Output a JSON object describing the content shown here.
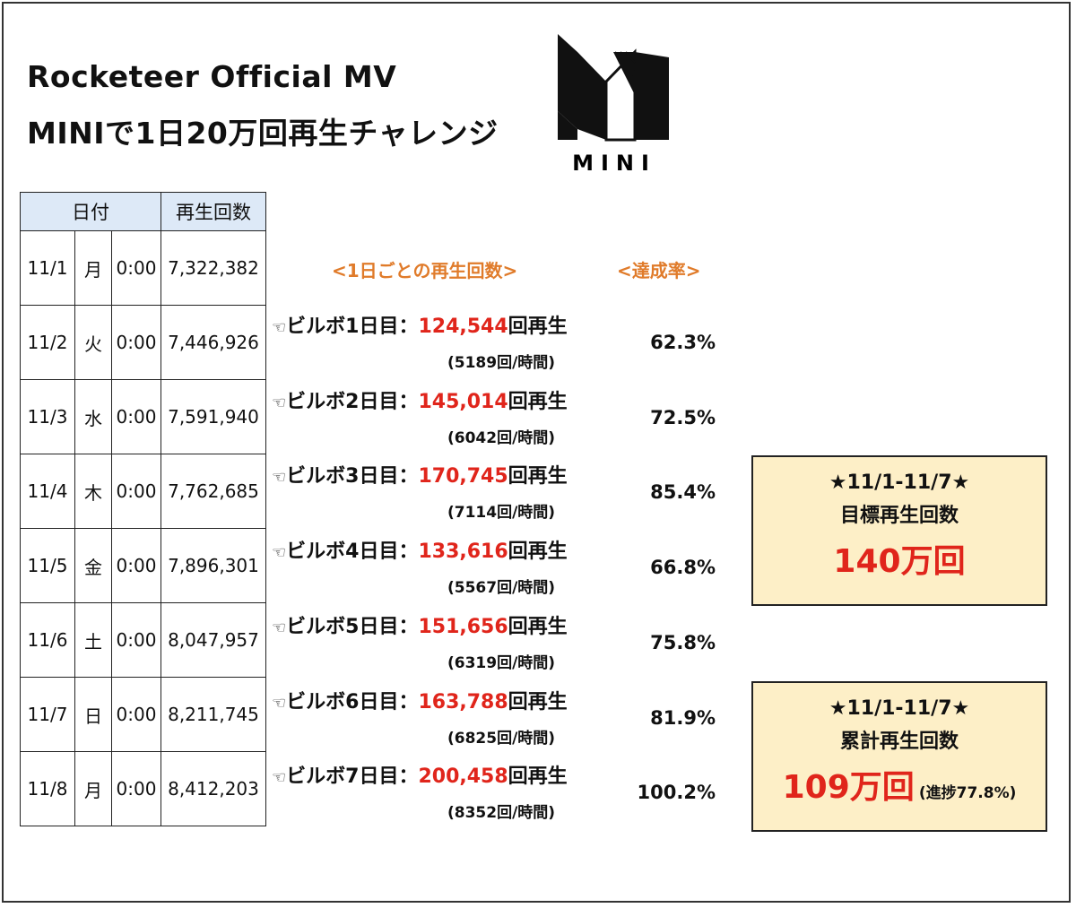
{
  "title_line1": "Rocketeer Official MV",
  "title_line2": "MINIで1日20万回再生チャレンジ",
  "logo_text": "MINI",
  "table": {
    "header_date": "日付",
    "header_count": "再生回数",
    "rows": [
      {
        "date": "11/1",
        "dow": "月",
        "time": "0:00",
        "count": "7,322,382"
      },
      {
        "date": "11/2",
        "dow": "火",
        "time": "0:00",
        "count": "7,446,926"
      },
      {
        "date": "11/3",
        "dow": "水",
        "time": "0:00",
        "count": "7,591,940"
      },
      {
        "date": "11/4",
        "dow": "木",
        "time": "0:00",
        "count": "7,762,685"
      },
      {
        "date": "11/5",
        "dow": "金",
        "time": "0:00",
        "count": "7,896,301"
      },
      {
        "date": "11/6",
        "dow": "土",
        "time": "0:00",
        "count": "8,047,957"
      },
      {
        "date": "11/7",
        "dow": "日",
        "time": "0:00",
        "count": "8,211,745"
      },
      {
        "date": "11/8",
        "dow": "月",
        "time": "0:00",
        "count": "8,412,203"
      }
    ]
  },
  "daily_header": "<1日ごとの再生回数>",
  "rate_header": "<達成率>",
  "daily": [
    {
      "label": "ビルボ1日目：",
      "plays": "124,544",
      "suffix": "回再生",
      "per_hour": "(5189回/時間)",
      "rate": "62.3%"
    },
    {
      "label": "ビルボ2日目：",
      "plays": "145,014",
      "suffix": "回再生",
      "per_hour": "(6042回/時間)",
      "rate": "72.5%"
    },
    {
      "label": "ビルボ3日目：",
      "plays": "170,745",
      "suffix": "回再生",
      "per_hour": "(7114回/時間)",
      "rate": "85.4%"
    },
    {
      "label": "ビルボ4日目：",
      "plays": "133,616",
      "suffix": "回再生",
      "per_hour": "(5567回/時間)",
      "rate": "66.8%"
    },
    {
      "label": "ビルボ5日目：",
      "plays": "151,656",
      "suffix": "回再生",
      "per_hour": "(6319回/時間)",
      "rate": "75.8%"
    },
    {
      "label": "ビルボ6日目：",
      "plays": "163,788",
      "suffix": "回再生",
      "per_hour": "(6825回/時間)",
      "rate": "81.9%"
    },
    {
      "label": "ビルボ7日目：",
      "plays": "200,458",
      "suffix": "回再生",
      "per_hour": "(8352回/時間)",
      "rate": "100.2%"
    }
  ],
  "goal_box": {
    "range": "★11/1-11/7★",
    "label": "目標再生回数",
    "value": "140万回"
  },
  "total_box": {
    "range": "★11/1-11/7★",
    "label": "累計再生回数",
    "value": "109万回",
    "progress": "(進捗77.8%)"
  },
  "colors": {
    "accent_red": "#e0251b",
    "header_orange": "#e07b2a",
    "box_fill": "#fdefc7",
    "table_header": "#dde9f7"
  }
}
